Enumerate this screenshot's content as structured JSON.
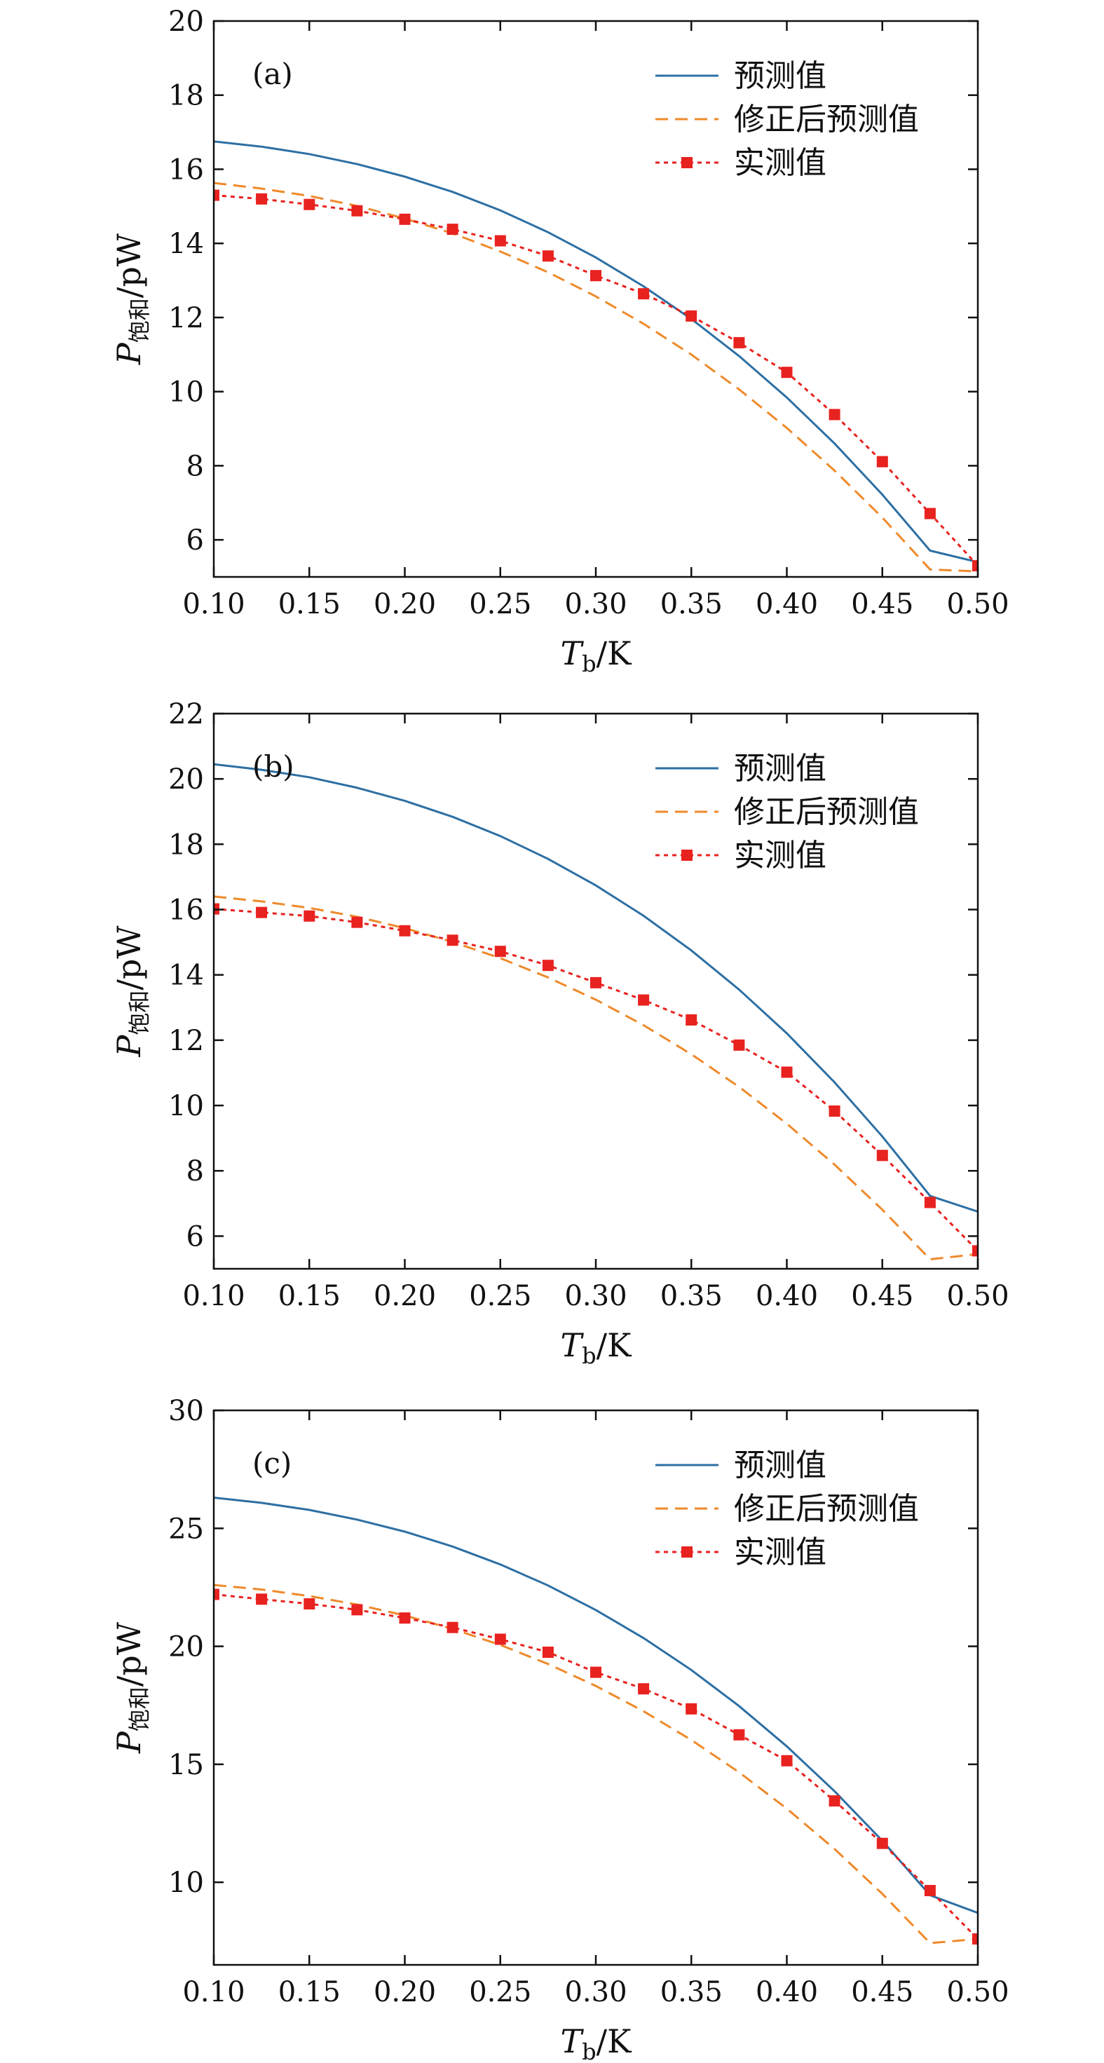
{
  "chart_data": [
    {
      "type": "line",
      "panel_label": "(a)",
      "xlabel": {
        "main": "T",
        "sub": "b",
        "unit": "/K"
      },
      "ylabel": {
        "main": "P",
        "sub": "饱和",
        "unit": "/pW"
      },
      "xlim": [
        0.1,
        0.5
      ],
      "ylim": [
        5,
        20
      ],
      "xticks": [
        0.1,
        0.15,
        0.2,
        0.25,
        0.3,
        0.35,
        0.4,
        0.45,
        0.5
      ],
      "xtick_labels": [
        "0.10",
        "0.15",
        "0.20",
        "0.25",
        "0.30",
        "0.35",
        "0.40",
        "0.45",
        "0.50"
      ],
      "yticks": [
        6,
        8,
        10,
        12,
        14,
        16,
        18,
        20
      ],
      "ytick_labels": [
        "6",
        "8",
        "10",
        "12",
        "14",
        "16",
        "18",
        "20"
      ],
      "grid": false,
      "legend_position": "top-right",
      "x": [
        0.1,
        0.125,
        0.15,
        0.175,
        0.2,
        0.225,
        0.25,
        0.275,
        0.3,
        0.325,
        0.35,
        0.375,
        0.4,
        0.425,
        0.45,
        0.475,
        0.5
      ],
      "series": [
        {
          "name": "预测值",
          "style": "solid",
          "color": "#2d6fa3",
          "values": [
            16.75,
            16.61,
            16.41,
            16.14,
            15.8,
            15.39,
            14.89,
            14.3,
            13.62,
            12.84,
            11.96,
            10.96,
            9.84,
            8.6,
            7.22,
            5.71,
            5.4
          ]
        },
        {
          "name": "修正后预测值",
          "style": "dashed",
          "color": "#ee8a2b",
          "values": [
            15.63,
            15.48,
            15.28,
            15.01,
            14.67,
            14.27,
            13.78,
            13.22,
            12.57,
            11.83,
            11.0,
            10.06,
            9.02,
            7.87,
            6.6,
            5.2,
            5.15
          ]
        },
        {
          "name": "实测值",
          "style": "dotted-marker",
          "color": "#e8221f",
          "values": [
            15.3,
            15.2,
            15.05,
            14.88,
            14.65,
            14.38,
            14.07,
            13.66,
            13.13,
            12.64,
            12.04,
            11.32,
            10.52,
            9.38,
            8.11,
            6.71,
            5.3
          ]
        }
      ]
    },
    {
      "type": "line",
      "panel_label": "(b)",
      "xlabel": {
        "main": "T",
        "sub": "b",
        "unit": "/K"
      },
      "ylabel": {
        "main": "P",
        "sub": "饱和",
        "unit": "/pW"
      },
      "xlim": [
        0.1,
        0.5
      ],
      "ylim": [
        5,
        22
      ],
      "xticks": [
        0.1,
        0.15,
        0.2,
        0.25,
        0.3,
        0.35,
        0.4,
        0.45,
        0.5
      ],
      "xtick_labels": [
        "0.10",
        "0.15",
        "0.20",
        "0.25",
        "0.30",
        "0.35",
        "0.40",
        "0.45",
        "0.50"
      ],
      "yticks": [
        6,
        8,
        10,
        12,
        14,
        16,
        18,
        20,
        22
      ],
      "ytick_labels": [
        "6",
        "8",
        "10",
        "12",
        "14",
        "16",
        "18",
        "20",
        "22"
      ],
      "grid": false,
      "legend_position": "top-right",
      "x": [
        0.1,
        0.125,
        0.15,
        0.175,
        0.2,
        0.225,
        0.25,
        0.275,
        0.3,
        0.325,
        0.35,
        0.375,
        0.4,
        0.425,
        0.45,
        0.475,
        0.5
      ],
      "series": [
        {
          "name": "预测值",
          "style": "solid",
          "color": "#2d6fa3",
          "values": [
            20.45,
            20.28,
            20.05,
            19.73,
            19.33,
            18.84,
            18.25,
            17.55,
            16.74,
            15.81,
            14.75,
            13.55,
            12.21,
            10.71,
            9.05,
            7.23,
            6.75
          ]
        },
        {
          "name": "修正后预测值",
          "style": "dashed",
          "color": "#ee8a2b",
          "values": [
            16.4,
            16.25,
            16.05,
            15.78,
            15.43,
            15.01,
            14.51,
            13.92,
            13.24,
            12.46,
            11.57,
            10.57,
            9.44,
            8.19,
            6.81,
            5.29,
            5.45
          ]
        },
        {
          "name": "实测值",
          "style": "dotted-marker",
          "color": "#e8221f",
          "values": [
            16.02,
            15.91,
            15.8,
            15.61,
            15.35,
            15.06,
            14.72,
            14.29,
            13.76,
            13.23,
            12.62,
            11.85,
            11.02,
            9.83,
            8.47,
            7.03,
            5.55
          ]
        }
      ]
    },
    {
      "type": "line",
      "panel_label": "(c)",
      "xlabel": {
        "main": "T",
        "sub": "b",
        "unit": "/K"
      },
      "ylabel": {
        "main": "P",
        "sub": "饱和",
        "unit": "/pW"
      },
      "xlim": [
        0.1,
        0.5
      ],
      "ylim": [
        6.5,
        30
      ],
      "xticks": [
        0.1,
        0.15,
        0.2,
        0.25,
        0.3,
        0.35,
        0.4,
        0.45,
        0.5
      ],
      "xtick_labels": [
        "0.10",
        "0.15",
        "0.20",
        "0.25",
        "0.30",
        "0.35",
        "0.40",
        "0.45",
        "0.50"
      ],
      "yticks": [
        10,
        15,
        20,
        25,
        30
      ],
      "ytick_labels": [
        "10",
        "15",
        "20",
        "25",
        "30"
      ],
      "grid": false,
      "legend_position": "top-right",
      "x": [
        0.1,
        0.125,
        0.15,
        0.175,
        0.2,
        0.225,
        0.25,
        0.275,
        0.3,
        0.325,
        0.35,
        0.375,
        0.4,
        0.425,
        0.45,
        0.475,
        0.5
      ],
      "series": [
        {
          "name": "预测值",
          "style": "solid",
          "color": "#2d6fa3",
          "values": [
            26.3,
            26.08,
            25.78,
            25.37,
            24.86,
            24.23,
            23.47,
            22.58,
            21.54,
            20.35,
            19.0,
            17.47,
            15.76,
            13.86,
            11.76,
            9.45,
            8.7
          ]
        },
        {
          "name": "修正后预测值",
          "style": "dashed",
          "color": "#ee8a2b",
          "values": [
            22.6,
            22.41,
            22.13,
            21.77,
            21.31,
            20.74,
            20.06,
            19.25,
            18.32,
            17.25,
            16.03,
            14.66,
            13.12,
            11.41,
            9.51,
            7.42,
            7.6
          ]
        },
        {
          "name": "实测值",
          "style": "dotted-marker",
          "color": "#e8221f",
          "values": [
            22.2,
            22.0,
            21.8,
            21.55,
            21.2,
            20.8,
            20.3,
            19.75,
            18.9,
            18.2,
            17.35,
            16.25,
            15.15,
            13.45,
            11.65,
            9.65,
            7.6
          ]
        }
      ]
    }
  ]
}
